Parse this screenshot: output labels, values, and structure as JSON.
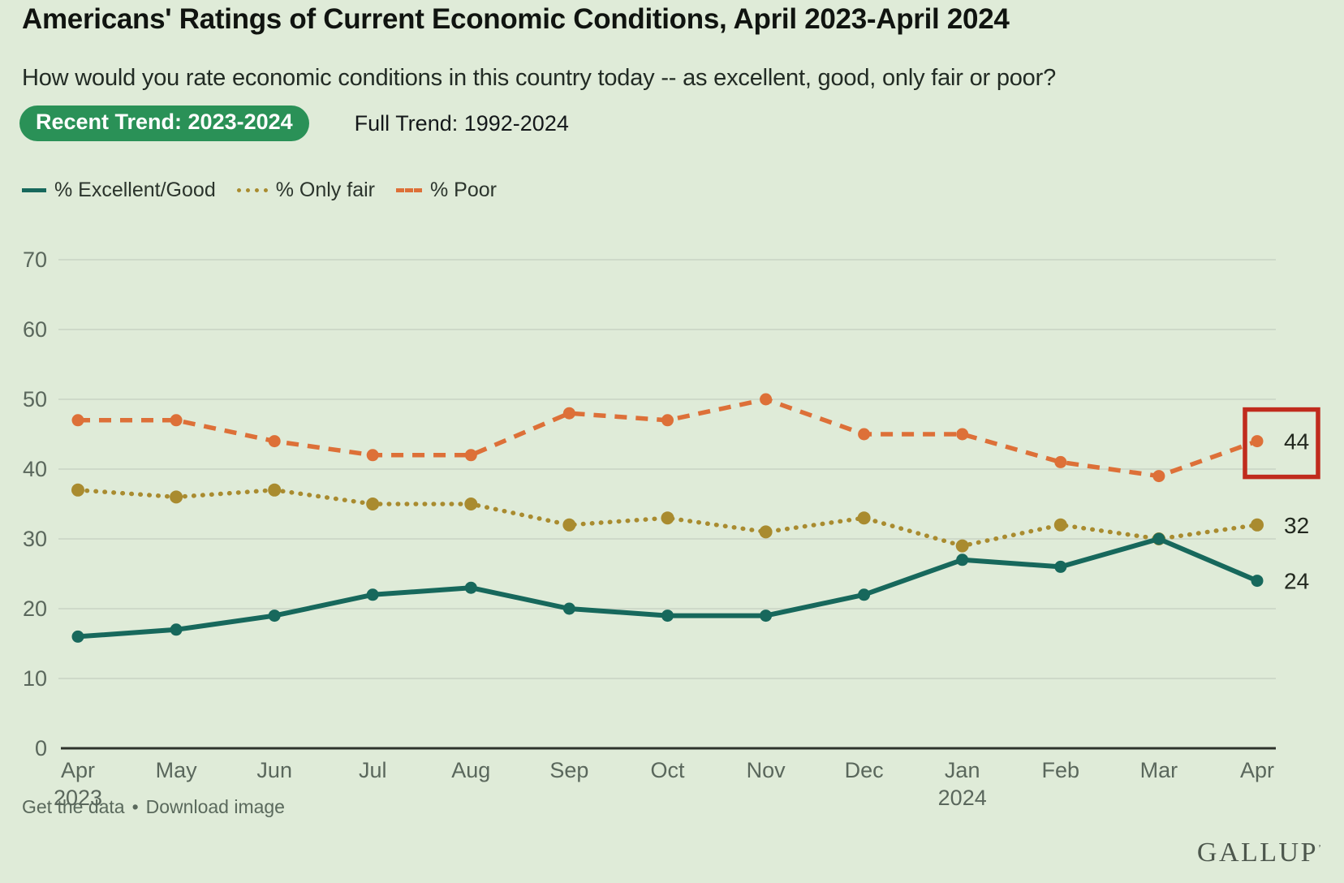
{
  "header": {
    "title": "Americans' Ratings of Current Economic Conditions, April 2023-April 2024",
    "subtitle": "How would you rate economic conditions in this country today -- as excellent, good, only fair or poor?",
    "tabs": [
      {
        "label": "Recent Trend: 2023-2024",
        "active": true
      },
      {
        "label": "Full Trend: 1992-2024",
        "active": false
      }
    ]
  },
  "chart_data": {
    "type": "line",
    "title": "Americans' Ratings of Current Economic Conditions, April 2023-April 2024",
    "categories": [
      "Apr 2023",
      "May",
      "Jun",
      "Jul",
      "Aug",
      "Sep",
      "Oct",
      "Nov",
      "Dec",
      "Jan 2024",
      "Feb",
      "Mar",
      "Apr"
    ],
    "series": [
      {
        "name": "% Excellent/Good",
        "style": "solid",
        "color": "#17685c",
        "values": [
          16,
          17,
          19,
          22,
          23,
          20,
          19,
          19,
          22,
          27,
          26,
          30,
          24
        ],
        "end_label": "24"
      },
      {
        "name": "% Only fair",
        "style": "dotted",
        "color": "#a98b2f",
        "values": [
          37,
          36,
          37,
          35,
          35,
          32,
          33,
          31,
          33,
          29,
          32,
          30,
          32
        ],
        "end_label": "32"
      },
      {
        "name": "% Poor",
        "style": "dashed",
        "color": "#dd7038",
        "values": [
          47,
          47,
          44,
          42,
          42,
          48,
          47,
          50,
          45,
          45,
          41,
          39,
          44
        ],
        "end_label": "44"
      }
    ],
    "ylim": [
      0,
      70
    ],
    "yticks": [
      0,
      10,
      20,
      30,
      40,
      50,
      60,
      70
    ],
    "grid": true,
    "legend_position": "top-left",
    "highlight": {
      "series": "% Poor",
      "category": "Apr",
      "category_index": 12,
      "value": 44
    }
  },
  "footer": {
    "links": [
      "Get the data",
      "Download image"
    ],
    "separator": "•",
    "logo": "GALLUP",
    "logo_mark": "’"
  },
  "colors": {
    "background": "#dfebd8",
    "tab_active_bg": "#2a9157",
    "tab_active_text": "#ffffff",
    "highlight_box": "#c02b1d",
    "gridline": "#c9d3c4",
    "axis_line": "#2e332c",
    "tick_text": "#5a675c",
    "end_label_text": "#22281f"
  }
}
